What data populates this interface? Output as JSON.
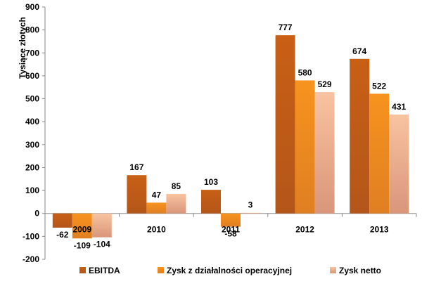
{
  "chart_data": {
    "type": "bar",
    "categories": [
      "2009",
      "2010",
      "2011",
      "2012",
      "2013"
    ],
    "series": [
      {
        "name": "EBITDA",
        "values": [
          -62,
          167,
          103,
          777,
          674
        ],
        "color": "#C55A11"
      },
      {
        "name": "Zysk z działalności operacyjnej",
        "values": [
          -109,
          47,
          -58,
          580,
          522
        ],
        "color": "#F28C28"
      },
      {
        "name": "Zysk netto",
        "values": [
          -104,
          85,
          3,
          529,
          431
        ],
        "color": "#F4B183"
      }
    ],
    "ylabel": "Tysiące złotych",
    "ylim": [
      -200,
      900
    ],
    "yticks": [
      -200,
      -100,
      0,
      100,
      200,
      300,
      400,
      500,
      600,
      700,
      800,
      900
    ],
    "legend_position": "bottom",
    "grid": false
  }
}
